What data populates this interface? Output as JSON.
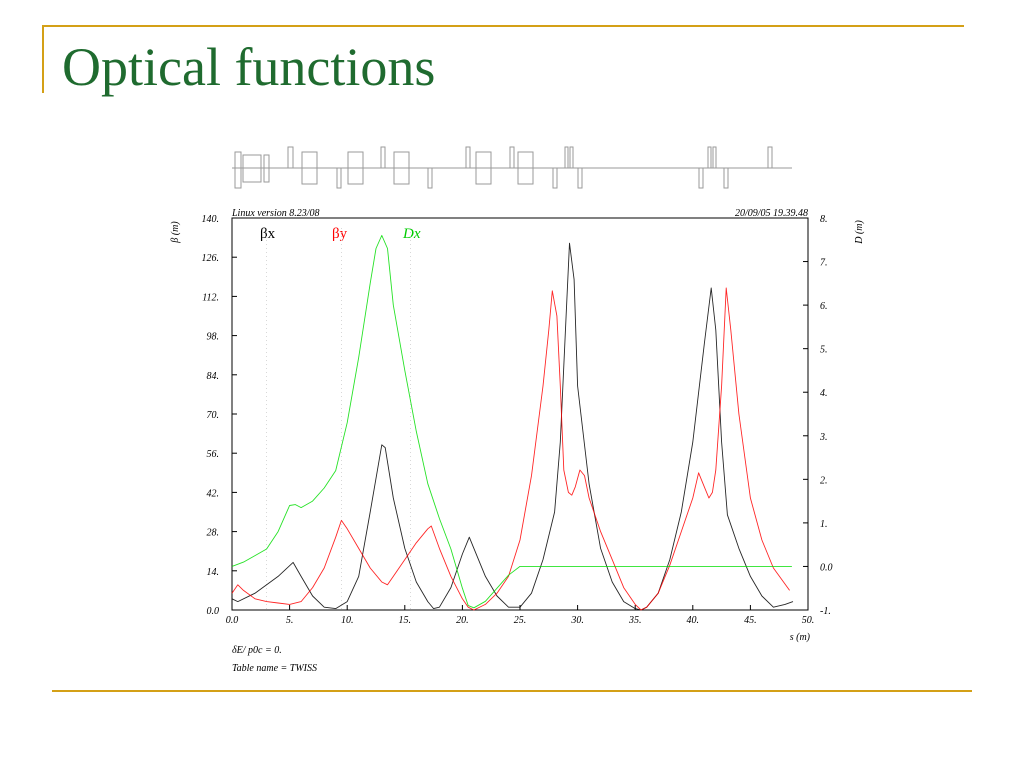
{
  "slide": {
    "title": "Optical functions"
  },
  "header": {
    "version": "Linux version 8.23/08",
    "timestamp": "20/09/05  19.39.48"
  },
  "footer": {
    "delta_label": "δE/ p0c  =  0.",
    "table_name": "Table name = TWISS"
  },
  "colors": {
    "betx": "#000000",
    "bety": "#ff0000",
    "dx": "#00dd00",
    "title": "#1f6b2f",
    "accent": "#d4a017"
  },
  "chart_data": {
    "type": "line",
    "xlabel": "s (m)",
    "ylabel_left": "β  (m)",
    "ylabel_right": "D  (m)",
    "xlim": [
      0,
      50
    ],
    "ylim_left": [
      0,
      140
    ],
    "ylim_right": [
      -1,
      8
    ],
    "x_ticks": [
      "0.0",
      "5.",
      "10.",
      "15.",
      "20.",
      "25.",
      "30.",
      "35.",
      "40.",
      "45.",
      "50."
    ],
    "y_left_ticks": [
      "0.0",
      "14.",
      "28.",
      "42.",
      "56.",
      "70.",
      "84.",
      "98.",
      "112.",
      "126.",
      "140."
    ],
    "y_right_ticks": [
      "-1.",
      "0.0",
      "1.",
      "2.",
      "3.",
      "4.",
      "5.",
      "6.",
      "7.",
      "8."
    ],
    "legend": [
      "βx",
      "βy",
      "Dx"
    ],
    "series": [
      {
        "name": "βx",
        "axis": "left",
        "points": [
          [
            0,
            4
          ],
          [
            0.5,
            3
          ],
          [
            2,
            6
          ],
          [
            4,
            12
          ],
          [
            5.3,
            17
          ],
          [
            6,
            12
          ],
          [
            7,
            5
          ],
          [
            8,
            1
          ],
          [
            9,
            0.5
          ],
          [
            10,
            3
          ],
          [
            11,
            12
          ],
          [
            12,
            35
          ],
          [
            13,
            59
          ],
          [
            13.3,
            58
          ],
          [
            14,
            40
          ],
          [
            15,
            22
          ],
          [
            16,
            10
          ],
          [
            17,
            3
          ],
          [
            17.5,
            0.5
          ],
          [
            18,
            1
          ],
          [
            19,
            8
          ],
          [
            20,
            20
          ],
          [
            20.6,
            26
          ],
          [
            21,
            22
          ],
          [
            22,
            12
          ],
          [
            23,
            5
          ],
          [
            24,
            1
          ],
          [
            25,
            1
          ],
          [
            26,
            6
          ],
          [
            27,
            18
          ],
          [
            28,
            35
          ],
          [
            28.5,
            60
          ],
          [
            29,
            105
          ],
          [
            29.3,
            131
          ],
          [
            29.7,
            118
          ],
          [
            30,
            80
          ],
          [
            31,
            45
          ],
          [
            32,
            22
          ],
          [
            33,
            10
          ],
          [
            34,
            3
          ],
          [
            35,
            0.5
          ],
          [
            35.5,
            0
          ],
          [
            36,
            1
          ],
          [
            37,
            6
          ],
          [
            38,
            18
          ],
          [
            39,
            35
          ],
          [
            40,
            60
          ],
          [
            41,
            95
          ],
          [
            41.6,
            115
          ],
          [
            42,
            100
          ],
          [
            42.5,
            60
          ],
          [
            43,
            34
          ],
          [
            44,
            22
          ],
          [
            45,
            12
          ],
          [
            46,
            5
          ],
          [
            47,
            1
          ],
          [
            48,
            2
          ],
          [
            48.7,
            3
          ]
        ]
      },
      {
        "name": "βy",
        "axis": "left",
        "points": [
          [
            0,
            6
          ],
          [
            0.5,
            9
          ],
          [
            1,
            7
          ],
          [
            2,
            4
          ],
          [
            3,
            3
          ],
          [
            4,
            2.5
          ],
          [
            5,
            2
          ],
          [
            6,
            3
          ],
          [
            7,
            8
          ],
          [
            8,
            15
          ],
          [
            9,
            26
          ],
          [
            9.5,
            32
          ],
          [
            10,
            29
          ],
          [
            11,
            22
          ],
          [
            12,
            15
          ],
          [
            13,
            10
          ],
          [
            13.5,
            9
          ],
          [
            14,
            12
          ],
          [
            15,
            18
          ],
          [
            16,
            24
          ],
          [
            17,
            29
          ],
          [
            17.3,
            30
          ],
          [
            18,
            22
          ],
          [
            19,
            12
          ],
          [
            20,
            4
          ],
          [
            20.5,
            1
          ],
          [
            21,
            0
          ],
          [
            22,
            2
          ],
          [
            23,
            6
          ],
          [
            24,
            12
          ],
          [
            25,
            25
          ],
          [
            26,
            48
          ],
          [
            27,
            80
          ],
          [
            27.5,
            100
          ],
          [
            27.8,
            114
          ],
          [
            28.2,
            105
          ],
          [
            28.5,
            80
          ],
          [
            28.8,
            50
          ],
          [
            29.2,
            42
          ],
          [
            29.5,
            41
          ],
          [
            29.8,
            44
          ],
          [
            30.2,
            50
          ],
          [
            30.6,
            48
          ],
          [
            31,
            40
          ],
          [
            32,
            28
          ],
          [
            33,
            18
          ],
          [
            34,
            8
          ],
          [
            35,
            2
          ],
          [
            35.5,
            0
          ],
          [
            36,
            1
          ],
          [
            37,
            6
          ],
          [
            38,
            16
          ],
          [
            39,
            28
          ],
          [
            40,
            40
          ],
          [
            40.5,
            49
          ],
          [
            41,
            44
          ],
          [
            41.4,
            40
          ],
          [
            41.7,
            42
          ],
          [
            42,
            50
          ],
          [
            42.5,
            80
          ],
          [
            42.9,
            115
          ],
          [
            43.3,
            100
          ],
          [
            44,
            70
          ],
          [
            45,
            40
          ],
          [
            46,
            25
          ],
          [
            47,
            15
          ],
          [
            48.4,
            7
          ]
        ]
      },
      {
        "name": "Dx",
        "axis": "right",
        "points": [
          [
            0,
            0
          ],
          [
            1,
            0.1
          ],
          [
            2,
            0.25
          ],
          [
            3,
            0.4
          ],
          [
            4,
            0.8
          ],
          [
            5,
            1.4
          ],
          [
            5.5,
            1.42
          ],
          [
            6,
            1.35
          ],
          [
            7,
            1.5
          ],
          [
            8,
            1.8
          ],
          [
            9,
            2.2
          ],
          [
            10,
            3.3
          ],
          [
            11,
            4.8
          ],
          [
            12,
            6.5
          ],
          [
            12.5,
            7.3
          ],
          [
            13,
            7.6
          ],
          [
            13.5,
            7.3
          ],
          [
            14,
            6
          ],
          [
            15,
            4.5
          ],
          [
            16,
            3.1
          ],
          [
            17,
            1.9
          ],
          [
            18,
            1.1
          ],
          [
            19,
            0.4
          ],
          [
            20,
            -0.5
          ],
          [
            20.5,
            -0.9
          ],
          [
            21,
            -0.95
          ],
          [
            22,
            -0.8
          ],
          [
            23,
            -0.5
          ],
          [
            24,
            -0.2
          ],
          [
            25,
            0.0
          ],
          [
            26,
            0.0
          ],
          [
            30,
            0.0
          ],
          [
            35,
            0.0
          ],
          [
            40,
            0.0
          ],
          [
            45,
            0.0
          ],
          [
            48.6,
            0.0
          ]
        ]
      }
    ],
    "grid": false
  }
}
